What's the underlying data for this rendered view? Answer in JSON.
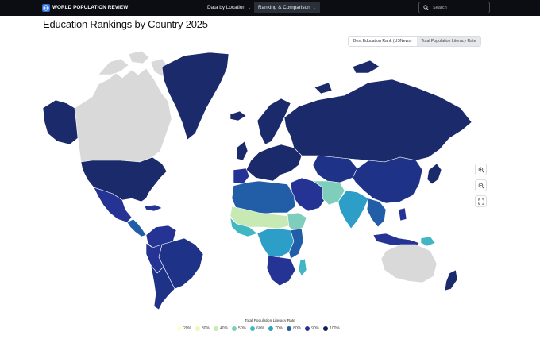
{
  "header": {
    "brand": "WORLD POPULATION REVIEW",
    "nav": [
      {
        "label": "Data by Location",
        "active": false
      },
      {
        "label": "Ranking & Comparison",
        "active": true
      }
    ],
    "search": {
      "placeholder": "Search"
    }
  },
  "page": {
    "title": "Education Rankings by Country 2025"
  },
  "toggle": {
    "options": [
      "Best Education Rank (USNews)",
      "Total Population Literacy Rate"
    ],
    "selected": "Total Population Literacy Rate"
  },
  "map": {
    "zoom_controls": [
      "zoom-in-icon",
      "zoom-out-icon",
      "fullscreen-icon"
    ],
    "colors": {
      "no_data": "#d9d9d9",
      "ocean": "#ffffff"
    }
  },
  "legend": {
    "title": "Total Population Literacy Rate",
    "items": [
      {
        "label": "20%",
        "color": "#ffffcc"
      },
      {
        "label": "30%",
        "color": "#eef7b9"
      },
      {
        "label": "40%",
        "color": "#c7e9b4"
      },
      {
        "label": "50%",
        "color": "#7fcdbb"
      },
      {
        "label": "60%",
        "color": "#41b6c4"
      },
      {
        "label": "70%",
        "color": "#2c9ec8"
      },
      {
        "label": "80%",
        "color": "#225ea8"
      },
      {
        "label": "90%",
        "color": "#253494"
      },
      {
        "label": "100%",
        "color": "#0d1f5c"
      }
    ]
  }
}
